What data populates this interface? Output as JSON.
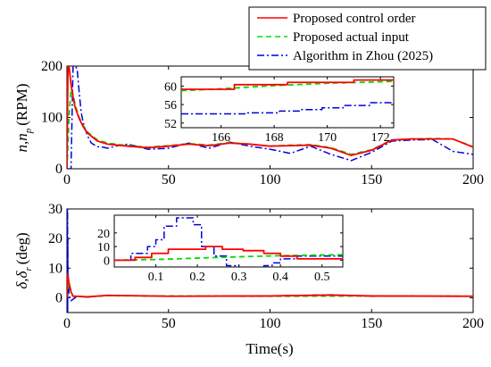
{
  "chart_data": [
    {
      "type": "line",
      "ylabel": "n, n_p (RPM)",
      "ylabel_parts": {
        "main": "n,n",
        "sub": "p",
        "unit": "(RPM)"
      },
      "xlim": [
        0,
        200
      ],
      "ylim": [
        0,
        200
      ],
      "xticks": [
        "0",
        "50",
        "100",
        "150",
        "200"
      ],
      "yticks": [
        "0",
        "100",
        "200"
      ],
      "legend": {
        "placement": "top-right",
        "entries": [
          "Proposed control order",
          "Proposed actual input",
          "Algorithm in Zhou (2025)"
        ]
      },
      "series": [
        {
          "name": "Proposed control order",
          "color": "#ff0000",
          "style": "solid",
          "x": [
            0,
            0.5,
            1,
            2,
            3,
            4,
            6,
            8,
            10,
            15,
            20,
            30,
            40,
            50,
            60,
            70,
            80,
            90,
            100,
            110,
            120,
            130,
            140,
            150,
            160,
            170,
            180,
            190,
            200
          ],
          "y": [
            0,
            200,
            200,
            165,
            140,
            120,
            98,
            82,
            70,
            54,
            48,
            44,
            41,
            44,
            48,
            45,
            50,
            48,
            44,
            45,
            46,
            40,
            26,
            36,
            56,
            58,
            58,
            58,
            42
          ]
        },
        {
          "name": "Proposed actual input",
          "color": "#00dd00",
          "style": "dashed",
          "x": [
            0,
            1,
            2,
            3,
            4,
            6,
            8,
            10,
            15,
            20,
            30,
            40,
            50,
            60,
            70,
            80,
            90,
            100,
            110,
            120,
            130,
            140,
            150,
            160,
            170,
            180,
            190,
            200
          ],
          "y": [
            0,
            100,
            155,
            145,
            125,
            100,
            84,
            72,
            56,
            50,
            45,
            42,
            45,
            49,
            46,
            51,
            48,
            44,
            46,
            47,
            41,
            28,
            37,
            56,
            58,
            59,
            58,
            43
          ]
        },
        {
          "name": "Algorithm in Zhou (2025)",
          "color": "#0000dd",
          "style": "dashdot",
          "x": [
            0,
            2,
            3,
            4,
            5,
            6,
            7,
            8,
            10,
            12,
            15,
            18,
            20,
            25,
            30,
            40,
            50,
            60,
            70,
            80,
            90,
            100,
            110,
            120,
            130,
            140,
            150,
            160,
            170,
            180,
            190,
            200
          ],
          "y": [
            0,
            0,
            200,
            200,
            195,
            150,
            110,
            90,
            65,
            50,
            43,
            42,
            40,
            45,
            48,
            38,
            40,
            50,
            40,
            52,
            44,
            38,
            30,
            44,
            28,
            16,
            32,
            54,
            56,
            57,
            34,
            28
          ]
        }
      ],
      "inset": {
        "xlim": [
          164.5,
          172.5
        ],
        "ylim": [
          51,
          62
        ],
        "xticks": [
          "166",
          "168",
          "170",
          "172"
        ],
        "yticks": [
          "52",
          "56",
          "60"
        ],
        "series": [
          {
            "name": "Proposed control order",
            "x": [
              164.5,
              166.5,
              166.5,
              168.5,
              168.5,
              171,
              171,
              172.5
            ],
            "y": [
              59.3,
              59.3,
              60.3,
              60.3,
              60.8,
              60.8,
              61.3,
              61.3
            ]
          },
          {
            "name": "Proposed actual input",
            "x": [
              164.5,
              166,
              168,
              170,
              172.5
            ],
            "y": [
              59.0,
              59.4,
              60.1,
              60.6,
              61.0
            ]
          },
          {
            "name": "Algorithm in Zhou (2025)",
            "x": [
              164.5,
              167,
              167,
              168.2,
              168.2,
              169,
              169,
              169.8,
              169.8,
              170.6,
              170.6,
              171.6,
              171.6,
              172.5
            ],
            "y": [
              54.0,
              54.0,
              54.2,
              54.2,
              54.6,
              54.6,
              54.9,
              54.9,
              55.3,
              55.3,
              55.8,
              55.8,
              56.4,
              56.4
            ]
          }
        ]
      }
    },
    {
      "type": "line",
      "xlabel": "Time(s)",
      "ylabel": "δ, δ_r (deg)",
      "ylabel_parts": {
        "main": "δ,δ",
        "sub": "r",
        "unit": "(deg)"
      },
      "xlim": [
        0,
        200
      ],
      "ylim": [
        -5,
        30
      ],
      "xticks": [
        "0",
        "50",
        "100",
        "150",
        "200"
      ],
      "yticks": [
        "0",
        "10",
        "20",
        "30"
      ],
      "series": [
        {
          "name": "Proposed control order",
          "x": [
            0,
            0.3,
            1,
            2,
            3,
            5,
            10,
            20,
            50,
            100,
            130,
            150,
            200
          ],
          "y": [
            0,
            8,
            5,
            2,
            0.5,
            0.5,
            0.3,
            0.8,
            0.5,
            0.6,
            0.9,
            0.6,
            0.5
          ]
        },
        {
          "name": "Proposed actual input",
          "x": [
            0,
            0.5,
            1,
            2,
            3,
            5,
            10,
            20,
            50,
            100,
            150,
            200
          ],
          "y": [
            0,
            4,
            5,
            2,
            0.5,
            0.4,
            0.3,
            0.7,
            0.6,
            0.5,
            0.6,
            0.5
          ]
        },
        {
          "name": "Algorithm in Zhou (2025)",
          "x": [
            0,
            0.1,
            0.15,
            0.2,
            0.25,
            0.3,
            0.35,
            0.45,
            0.5,
            0.6,
            1,
            2,
            5,
            10,
            20,
            50,
            100,
            130,
            150,
            200
          ],
          "y": [
            0,
            30,
            30,
            -3,
            -5,
            30,
            -5,
            20,
            2,
            8,
            1,
            -1,
            0.5,
            0.2,
            0.8,
            0.5,
            0.6,
            1.0,
            0.5,
            0.5
          ]
        }
      ],
      "inset": {
        "xlim": [
          0,
          0.55
        ],
        "ylim": [
          -5,
          33
        ],
        "xticks": [
          "0.1",
          "0.2",
          "0.3",
          "0.4",
          "0.5"
        ],
        "yticks": [
          "0",
          "10",
          "20"
        ],
        "series": [
          {
            "name": "Proposed control order",
            "x": [
              0,
              0.05,
              0.05,
              0.09,
              0.09,
              0.13,
              0.13,
              0.22,
              0.22,
              0.26,
              0.26,
              0.31,
              0.31,
              0.36,
              0.36,
              0.4,
              0.4,
              0.44,
              0.44,
              0.55
            ],
            "y": [
              0,
              0,
              2,
              2,
              5,
              5,
              8,
              8,
              10,
              10,
              8,
              8,
              7,
              7,
              5,
              5,
              3,
              3,
              1,
              1
            ]
          },
          {
            "name": "Proposed actual input",
            "x": [
              0,
              0.1,
              0.2,
              0.3,
              0.4,
              0.5,
              0.55
            ],
            "y": [
              0,
              0.5,
              1.5,
              2.5,
              3.3,
              3.8,
              4.0
            ]
          },
          {
            "name": "Algorithm in Zhou (2025)",
            "x": [
              0,
              0.04,
              0.04,
              0.08,
              0.08,
              0.1,
              0.1,
              0.12,
              0.12,
              0.15,
              0.15,
              0.19,
              0.19,
              0.21,
              0.21,
              0.24,
              0.24,
              0.27,
              0.27,
              0.3,
              0.3,
              0.36,
              0.36,
              0.38,
              0.38,
              0.4,
              0.4,
              0.44,
              0.44,
              0.55
            ],
            "y": [
              0,
              0,
              5,
              5,
              10,
              10,
              15,
              15,
              25,
              25,
              31,
              31,
              26,
              26,
              10,
              10,
              3,
              3,
              -4,
              -4,
              -6,
              -6,
              -4,
              -4,
              -2,
              -2,
              1,
              1,
              3,
              3
            ]
          }
        ]
      }
    }
  ]
}
